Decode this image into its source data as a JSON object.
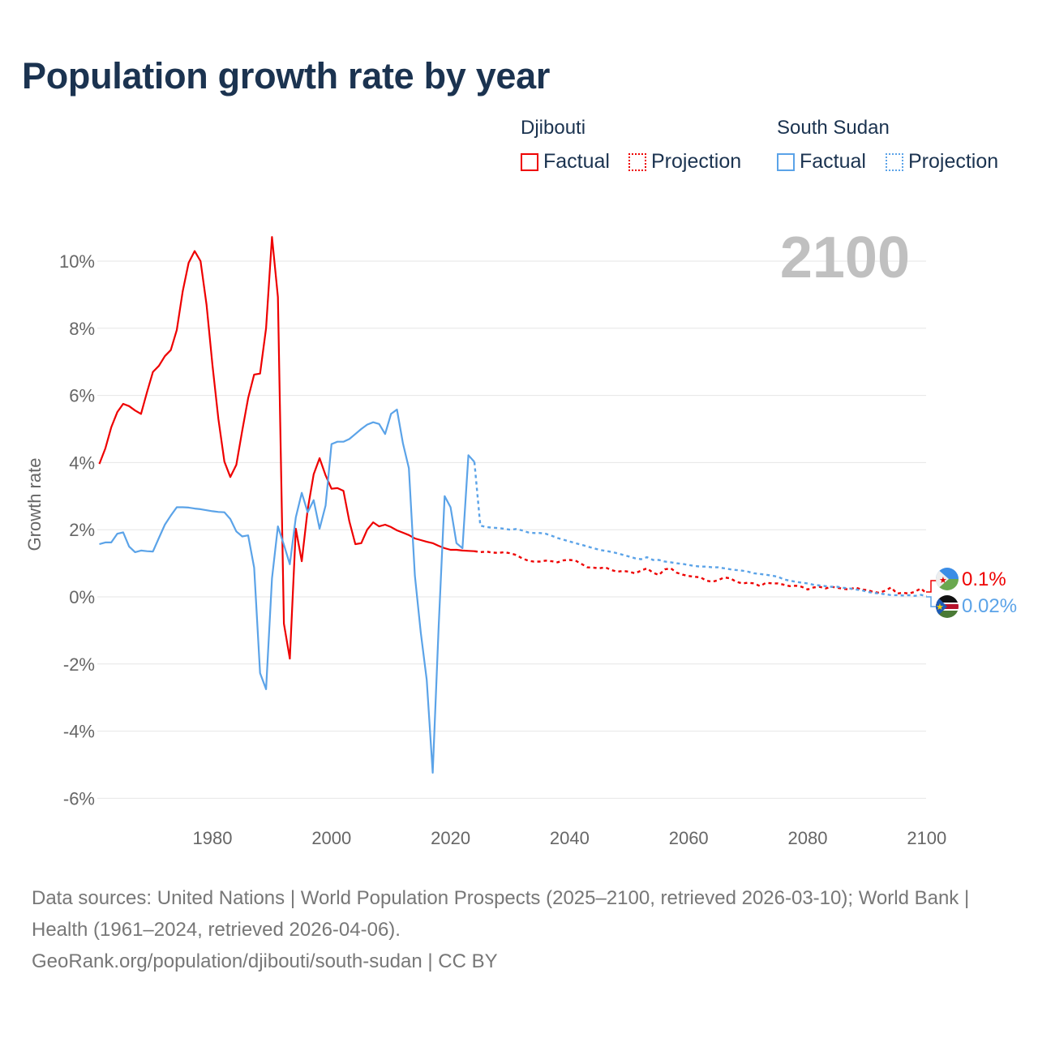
{
  "title": "Population growth rate by year",
  "legend": {
    "groups": [
      {
        "name": "Djibouti",
        "factual": "Factual",
        "projection": "Projection",
        "color": "#ee0000"
      },
      {
        "name": "South Sudan",
        "factual": "Factual",
        "projection": "Projection",
        "color": "#5ba3e8"
      }
    ]
  },
  "year_display": "2100",
  "end_labels": {
    "djibouti": "0.1%",
    "south_sudan": "0.02%"
  },
  "icons": {
    "djibouti": "djibouti-flag-icon",
    "south_sudan": "south-sudan-flag-icon"
  },
  "footer": {
    "line1": "Data sources: United Nations | World Population Prospects (2025–2100, retrieved 2026-03-10); World Bank | Health (1961–2024, retrieved 2026-04-06).",
    "line2": "GeoRank.org/population/djibouti/south-sudan | CC BY"
  },
  "chart_data": {
    "type": "line",
    "title": "Population growth rate by year",
    "xlabel": "",
    "ylabel": "Growth rate",
    "xlim": [
      1961,
      2100
    ],
    "ylim": [
      -6,
      10.8
    ],
    "x_ticks": [
      "1980",
      "2000",
      "2020",
      "2040",
      "2060",
      "2080",
      "2100"
    ],
    "y_ticks": [
      "-6%",
      "-4%",
      "-2%",
      "0%",
      "2%",
      "4%",
      "6%",
      "8%",
      "10%"
    ],
    "grid": true,
    "legend_position": "top-right",
    "factual_years": [
      1961,
      2024
    ],
    "projection_years": [
      2025,
      2100
    ],
    "series": [
      {
        "name": "Djibouti",
        "color": "#ee0000",
        "factual": [
          3.96,
          4.42,
          5.05,
          5.5,
          5.75,
          5.68,
          5.55,
          5.45,
          6.1,
          6.7,
          6.88,
          7.17,
          7.35,
          7.95,
          9.1,
          9.95,
          10.3,
          10.0,
          8.7,
          6.9,
          5.3,
          4.03,
          3.57,
          3.93,
          4.95,
          5.92,
          6.62,
          6.65,
          8.0,
          10.72,
          8.93,
          -0.8,
          -1.84,
          2.03,
          1.06,
          2.6,
          3.65,
          4.13,
          3.62,
          3.22,
          3.24,
          3.16,
          2.25,
          1.57,
          1.6,
          2.0,
          2.22,
          2.1,
          2.15,
          2.08,
          1.98,
          1.91,
          1.84,
          1.74,
          1.69,
          1.64,
          1.6,
          1.52,
          1.45,
          1.4,
          1.4,
          1.38,
          1.37,
          1.36
        ],
        "projection": [
          1.33,
          1.35,
          1.32,
          1.31,
          1.33,
          1.3,
          1.25,
          1.15,
          1.08,
          1.05,
          1.05,
          1.08,
          1.06,
          1.03,
          1.09,
          1.1,
          1.08,
          0.98,
          0.88,
          0.87,
          0.85,
          0.88,
          0.8,
          0.75,
          0.77,
          0.75,
          0.7,
          0.78,
          0.85,
          0.72,
          0.65,
          0.82,
          0.85,
          0.72,
          0.66,
          0.62,
          0.6,
          0.58,
          0.48,
          0.45,
          0.5,
          0.58,
          0.55,
          0.45,
          0.4,
          0.42,
          0.4,
          0.32,
          0.42,
          0.4,
          0.4,
          0.36,
          0.32,
          0.33,
          0.3,
          0.22,
          0.28,
          0.3,
          0.25,
          0.3,
          0.27,
          0.24,
          0.22,
          0.28,
          0.22,
          0.2,
          0.15,
          0.12,
          0.18,
          0.28,
          0.1,
          0.12,
          0.1,
          0.15,
          0.25,
          0.1
        ]
      },
      {
        "name": "South Sudan",
        "color": "#5ba3e8",
        "factual": [
          1.57,
          1.62,
          1.62,
          1.88,
          1.92,
          1.5,
          1.33,
          1.38,
          1.36,
          1.35,
          1.75,
          2.15,
          2.42,
          2.67,
          2.67,
          2.66,
          2.63,
          2.61,
          2.58,
          2.55,
          2.53,
          2.52,
          2.32,
          1.95,
          1.8,
          1.83,
          0.87,
          -2.27,
          -2.75,
          0.55,
          2.1,
          1.55,
          0.97,
          2.37,
          3.1,
          2.52,
          2.88,
          2.03,
          2.72,
          4.55,
          4.62,
          4.62,
          4.7,
          4.85,
          5.0,
          5.13,
          5.2,
          5.15,
          4.85,
          5.45,
          5.58,
          4.57,
          3.83,
          0.63,
          -1.07,
          -2.47,
          -5.24,
          -0.9,
          3.0,
          2.67,
          1.6,
          1.45,
          4.22,
          4.02
        ],
        "projection": [
          2.12,
          2.08,
          2.06,
          2.05,
          2.03,
          2.0,
          2.02,
          1.98,
          1.92,
          1.9,
          1.9,
          1.88,
          1.82,
          1.75,
          1.7,
          1.65,
          1.6,
          1.55,
          1.5,
          1.45,
          1.4,
          1.37,
          1.34,
          1.3,
          1.25,
          1.2,
          1.15,
          1.12,
          1.18,
          1.1,
          1.1,
          1.05,
          1.03,
          1.0,
          0.98,
          0.95,
          0.92,
          0.9,
          0.9,
          0.88,
          0.88,
          0.85,
          0.82,
          0.8,
          0.78,
          0.75,
          0.7,
          0.68,
          0.66,
          0.63,
          0.6,
          0.52,
          0.48,
          0.45,
          0.42,
          0.4,
          0.36,
          0.34,
          0.32,
          0.3,
          0.3,
          0.27,
          0.25,
          0.22,
          0.2,
          0.15,
          0.12,
          0.1,
          0.08,
          0.05,
          0.05,
          0.04,
          0.05,
          0.03,
          0.06,
          0.02
        ]
      }
    ]
  }
}
